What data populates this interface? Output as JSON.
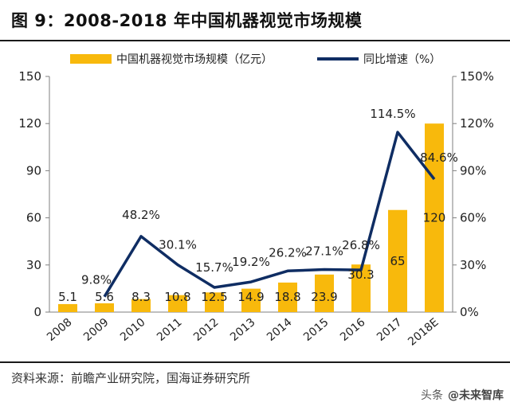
{
  "header": {
    "title": "图 9：2008-2018 年中国机器视觉市场规模"
  },
  "footer": {
    "source": "资料来源：前瞻产业研究院，国海证券研究所",
    "watermark_prefix": "头条",
    "watermark_brand": "@未来智库"
  },
  "colors": {
    "bar": "#F8B90C",
    "line": "#0F2D63",
    "axis": "#7f7f7f",
    "text": "#222222"
  },
  "chart_data": {
    "type": "bar",
    "title": "2008-2018 年中国机器视觉市场规模",
    "categories": [
      "2008",
      "2009",
      "2010",
      "2011",
      "2012",
      "2013",
      "2014",
      "2015",
      "2016",
      "2017",
      "2018E"
    ],
    "series": [
      {
        "name": "中国机器视觉市场规模（亿元）",
        "type": "bar",
        "axis": "left",
        "values": [
          5.1,
          5.6,
          8.3,
          10.8,
          12.5,
          14.9,
          18.8,
          23.9,
          30.3,
          65,
          120
        ],
        "labels": [
          "5.1",
          "5.6",
          "8.3",
          "10.8",
          "12.5",
          "14.9",
          "18.8",
          "23.9",
          "30.3",
          "65",
          "120"
        ]
      },
      {
        "name": "同比增速（%）",
        "type": "line",
        "axis": "right",
        "values": [
          null,
          9.8,
          48.2,
          30.1,
          15.7,
          19.2,
          26.2,
          27.1,
          26.8,
          114.5,
          84.6
        ],
        "labels": [
          "",
          "9.8%",
          "48.2%",
          "30.1%",
          "15.7%",
          "19.2%",
          "26.2%",
          "27.1%",
          "26.8%",
          "114.5%",
          "84.6%"
        ]
      }
    ],
    "y_left": {
      "min": 0,
      "max": 150,
      "ticks": [
        0,
        30,
        60,
        90,
        120,
        150
      ],
      "tick_labels": [
        "0",
        "30",
        "60",
        "90",
        "120",
        "150"
      ]
    },
    "y_right": {
      "min": 0,
      "max": 150,
      "ticks": [
        0,
        30,
        60,
        90,
        120,
        150
      ],
      "tick_labels": [
        "0%",
        "30%",
        "60%",
        "90%",
        "120%",
        "150%"
      ]
    },
    "legend_position": "top",
    "grid": false
  }
}
